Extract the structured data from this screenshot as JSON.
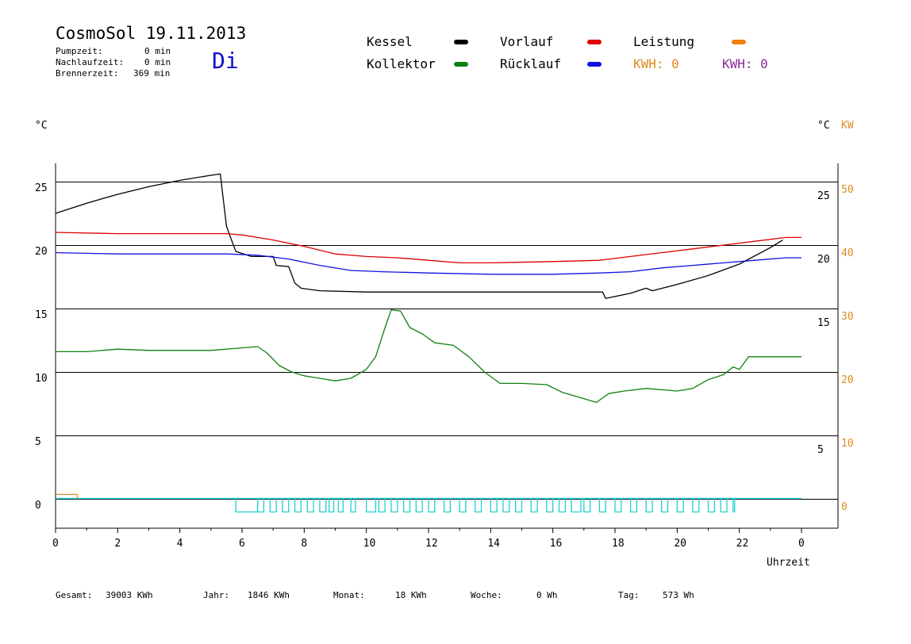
{
  "header": {
    "title": "CosmoSol 19.11.2013",
    "weekday": "Di",
    "stats": [
      {
        "label": "Pumpzeit:",
        "value": "0 min"
      },
      {
        "label": "Nachlaufzeit:",
        "value": "0 min"
      },
      {
        "label": "Brennerzeit:",
        "value": "369 min"
      }
    ]
  },
  "legend": {
    "kessel": {
      "label": "Kessel",
      "color": "#000000"
    },
    "vorlauf": {
      "label": "Vorlauf",
      "color": "#e00000"
    },
    "leistung": {
      "label": "Leistung",
      "color": "#f08010"
    },
    "kollektor": {
      "label": "Kollektor",
      "color": "#108010"
    },
    "ruecklauf": {
      "label": "Rücklauf",
      "color": "#1010e0"
    },
    "kwh1": {
      "label": "KWH: 0",
      "color": "#e08a20"
    },
    "kwh2": {
      "label": "KWH: 0",
      "color": "#8a2a9a"
    }
  },
  "axes": {
    "left_unit": "°C",
    "right_unit": "°C",
    "right_unit2": "KW",
    "x_label": "Uhrzeit"
  },
  "footer": [
    {
      "label": "Gesamt:",
      "value": "39003 KWh"
    },
    {
      "label": "Jahr:",
      "value": "1846 KWh"
    },
    {
      "label": "Monat:",
      "value": "18 KWh"
    },
    {
      "label": "Woche:",
      "value": "0 Wh"
    },
    {
      "label": "Tag:",
      "value": "573 Wh"
    }
  ],
  "chart_data": {
    "type": "line",
    "xlabel": "Uhrzeit",
    "ylabel": "°C",
    "x_ticks": [
      "0",
      "2",
      "4",
      "6",
      "8",
      "10",
      "12",
      "14",
      "16",
      "18",
      "20",
      "22",
      "0"
    ],
    "xlim": [
      0,
      24
    ],
    "ylim_left": [
      -1,
      26
    ],
    "y_ticks_left": [
      0,
      5,
      10,
      15,
      20,
      25
    ],
    "y_ticks_right_c": [
      5,
      15,
      20,
      25
    ],
    "y_ticks_right_kw": [
      0,
      10,
      20,
      30,
      40,
      50
    ],
    "grid": true,
    "series": [
      {
        "name": "Kessel",
        "color": "#000000",
        "points": [
          [
            0,
            22.5
          ],
          [
            1,
            23.3
          ],
          [
            2,
            24.0
          ],
          [
            3,
            24.6
          ],
          [
            4,
            25.1
          ],
          [
            5,
            25.5
          ],
          [
            5.3,
            25.6
          ],
          [
            5.5,
            21.5
          ],
          [
            5.6,
            20.8
          ],
          [
            5.8,
            19.5
          ],
          [
            6.3,
            19.1
          ],
          [
            7.0,
            19.1
          ],
          [
            7.1,
            18.4
          ],
          [
            7.5,
            18.3
          ],
          [
            7.7,
            17.0
          ],
          [
            7.9,
            16.6
          ],
          [
            8.5,
            16.4
          ],
          [
            10,
            16.3
          ],
          [
            12,
            16.3
          ],
          [
            14,
            16.3
          ],
          [
            16,
            16.3
          ],
          [
            17.6,
            16.3
          ],
          [
            17.7,
            15.8
          ],
          [
            18.5,
            16.2
          ],
          [
            19.0,
            16.6
          ],
          [
            19.2,
            16.4
          ],
          [
            20,
            16.9
          ],
          [
            21,
            17.6
          ],
          [
            22,
            18.5
          ],
          [
            23,
            19.8
          ],
          [
            23.4,
            20.4
          ]
        ]
      },
      {
        "name": "Vorlauf",
        "color": "#e00000",
        "points": [
          [
            0,
            21.0
          ],
          [
            2,
            20.9
          ],
          [
            4,
            20.9
          ],
          [
            5.5,
            20.9
          ],
          [
            6,
            20.8
          ],
          [
            7,
            20.4
          ],
          [
            8,
            19.9
          ],
          [
            9,
            19.3
          ],
          [
            10,
            19.1
          ],
          [
            11,
            19.0
          ],
          [
            12,
            18.8
          ],
          [
            13,
            18.6
          ],
          [
            14,
            18.6
          ],
          [
            16,
            18.7
          ],
          [
            17.5,
            18.8
          ],
          [
            18.5,
            19.1
          ],
          [
            19.5,
            19.4
          ],
          [
            20.5,
            19.7
          ],
          [
            21.5,
            20.0
          ],
          [
            22.5,
            20.3
          ],
          [
            23.5,
            20.6
          ],
          [
            24,
            20.6
          ]
        ]
      },
      {
        "name": "Rücklauf",
        "color": "#1010e0",
        "points": [
          [
            0,
            19.4
          ],
          [
            2,
            19.3
          ],
          [
            4,
            19.3
          ],
          [
            5.5,
            19.3
          ],
          [
            6.5,
            19.2
          ],
          [
            7.5,
            18.9
          ],
          [
            8.5,
            18.4
          ],
          [
            9.5,
            18.0
          ],
          [
            10.5,
            17.9
          ],
          [
            12,
            17.8
          ],
          [
            14,
            17.7
          ],
          [
            16,
            17.7
          ],
          [
            17.5,
            17.8
          ],
          [
            18.5,
            17.9
          ],
          [
            19.5,
            18.2
          ],
          [
            20.5,
            18.4
          ],
          [
            21.5,
            18.6
          ],
          [
            22.5,
            18.8
          ],
          [
            23.5,
            19.0
          ],
          [
            24,
            19.0
          ]
        ]
      },
      {
        "name": "Kollektor",
        "color": "#108010",
        "points": [
          [
            0,
            11.6
          ],
          [
            1,
            11.6
          ],
          [
            2,
            11.8
          ],
          [
            3,
            11.7
          ],
          [
            4,
            11.7
          ],
          [
            5,
            11.7
          ],
          [
            6,
            11.9
          ],
          [
            6.5,
            12.0
          ],
          [
            6.8,
            11.5
          ],
          [
            7.2,
            10.5
          ],
          [
            7.6,
            10.0
          ],
          [
            8,
            9.7
          ],
          [
            8.5,
            9.5
          ],
          [
            9,
            9.3
          ],
          [
            9.5,
            9.5
          ],
          [
            10,
            10.2
          ],
          [
            10.3,
            11.2
          ],
          [
            10.6,
            13.5
          ],
          [
            10.8,
            14.9
          ],
          [
            11.1,
            14.8
          ],
          [
            11.4,
            13.5
          ],
          [
            11.8,
            13.0
          ],
          [
            12.2,
            12.3
          ],
          [
            12.8,
            12.1
          ],
          [
            13.3,
            11.2
          ],
          [
            13.8,
            10.0
          ],
          [
            14.3,
            9.1
          ],
          [
            15,
            9.1
          ],
          [
            15.8,
            9.0
          ],
          [
            16.3,
            8.4
          ],
          [
            17,
            7.9
          ],
          [
            17.4,
            7.6
          ],
          [
            17.8,
            8.3
          ],
          [
            18.3,
            8.5
          ],
          [
            19,
            8.7
          ],
          [
            20,
            8.5
          ],
          [
            20.5,
            8.7
          ],
          [
            21,
            9.4
          ],
          [
            21.5,
            9.8
          ],
          [
            21.8,
            10.4
          ],
          [
            22.0,
            10.2
          ],
          [
            22.3,
            11.2
          ],
          [
            23,
            11.2
          ],
          [
            24,
            11.2
          ]
        ]
      },
      {
        "name": "Leistung",
        "color": "#e08a20",
        "points": [
          [
            0,
            0.35
          ],
          [
            0.7,
            0.35
          ],
          [
            0.7,
            0
          ]
        ]
      }
    ],
    "annotations": [
      "Kessel",
      "Vorlauf",
      "Leistung",
      "Kollektor",
      "Rücklauf",
      "KWH: 0",
      "KWH: 0"
    ]
  }
}
